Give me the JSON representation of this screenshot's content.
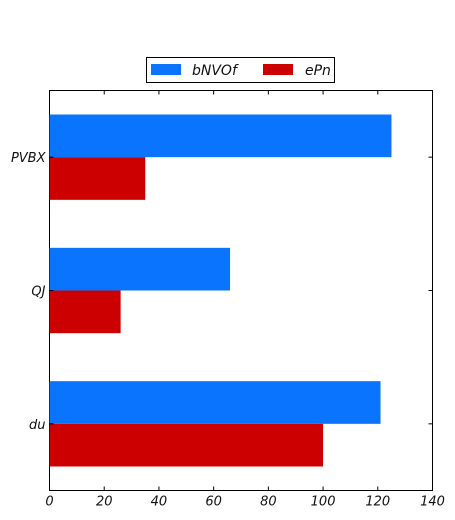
{
  "chart_data": {
    "type": "bar",
    "orientation": "horizontal",
    "categories": [
      "du",
      "QJ",
      "PVBX"
    ],
    "series": [
      {
        "name": "bNVOf",
        "color": "#0a74ff",
        "values": [
          121,
          66,
          125
        ]
      },
      {
        "name": "ePn",
        "color": "#cc0000",
        "values": [
          100,
          26,
          35
        ]
      }
    ],
    "xlim": [
      0,
      140
    ],
    "xticks": [
      "0",
      "20",
      "40",
      "60",
      "80",
      "100",
      "120",
      "140"
    ],
    "grid": false,
    "legend_position": "top-center"
  }
}
